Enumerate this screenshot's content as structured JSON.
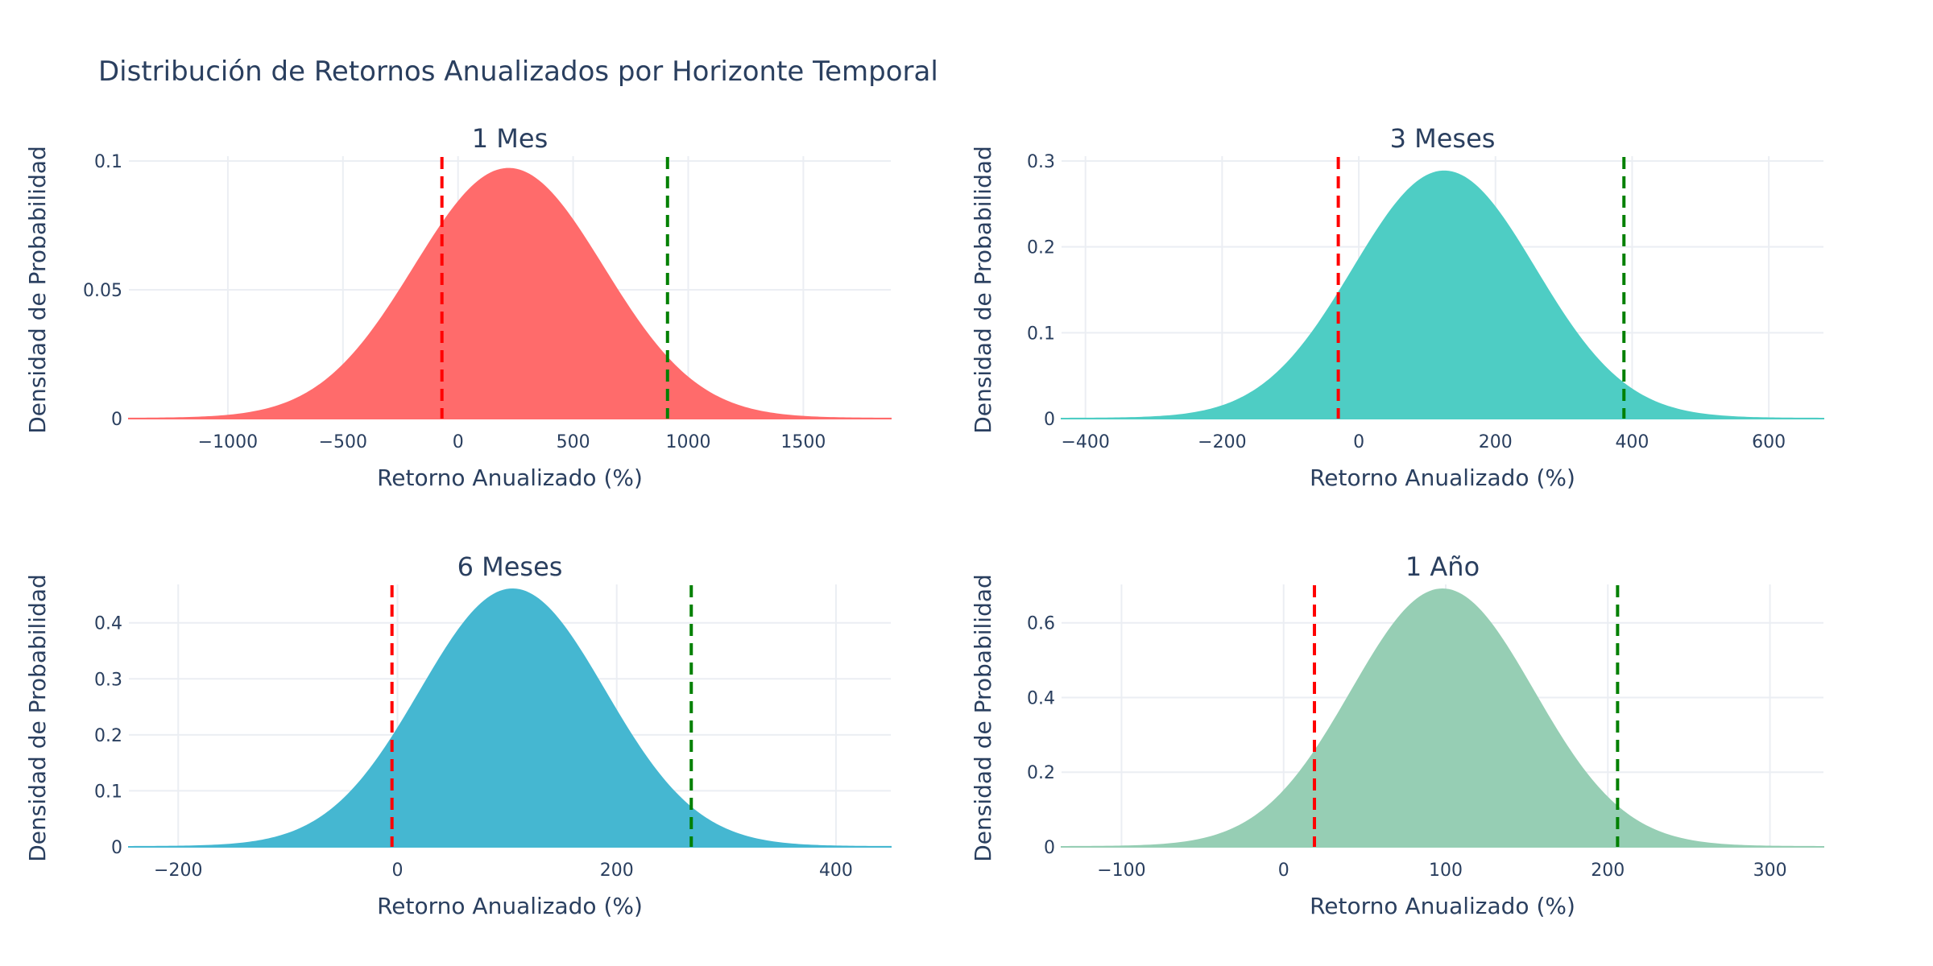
{
  "title": "Distribución de Retornos Anualizados por Horizonte Temporal",
  "colors": {
    "text": "#2a3f5f",
    "grid": "#ebeef3",
    "var_line": "#ff0000",
    "upper_line": "#008000"
  },
  "chart_data": [
    {
      "type": "area",
      "title": "1 Mes",
      "xlabel": "Retorno Anualizado (%)",
      "ylabel": "Densidad de Probabilidad",
      "color": "#ff6b6b",
      "mean": 220,
      "std": 410,
      "peak": 0.097,
      "xlim": [
        -1430,
        1880
      ],
      "ylim": [
        0,
        0.1
      ],
      "xticks": [
        -1000,
        -500,
        0,
        500,
        1000,
        1500
      ],
      "xtick_labels": [
        "−1000",
        "−500",
        "0",
        "500",
        "1000",
        "1500"
      ],
      "yticks": [
        0,
        0.05,
        0.1
      ],
      "ytick_labels": [
        "0",
        "0.05",
        "0.1"
      ],
      "lower_line": -70,
      "upper_line": 910
    },
    {
      "type": "area",
      "title": "3 Meses",
      "xlabel": "Retorno Anualizado (%)",
      "ylabel": "Densidad de Probabilidad",
      "color": "#4ecdc4",
      "mean": 125,
      "std": 133,
      "peak": 0.288,
      "xlim": [
        -435,
        680
      ],
      "ylim": [
        0,
        0.3
      ],
      "xticks": [
        -400,
        -200,
        0,
        200,
        400,
        600
      ],
      "xtick_labels": [
        "−400",
        "−200",
        "0",
        "200",
        "400",
        "600"
      ],
      "yticks": [
        0,
        0.1,
        0.2,
        0.3
      ],
      "ytick_labels": [
        "0",
        "0.1",
        "0.2",
        "0.3"
      ],
      "lower_line": -30,
      "upper_line": 388
    },
    {
      "type": "area",
      "title": "6 Meses",
      "xlabel": "Retorno Anualizado (%)",
      "ylabel": "Densidad de Probabilidad",
      "color": "#45b7d1",
      "mean": 105,
      "std": 84,
      "peak": 0.46,
      "xlim": [
        -245,
        450
      ],
      "ylim": [
        0,
        0.46
      ],
      "xticks": [
        -200,
        0,
        200,
        400
      ],
      "xtick_labels": [
        "−200",
        "0",
        "200",
        "400"
      ],
      "yticks": [
        0,
        0.1,
        0.2,
        0.3,
        0.4
      ],
      "ytick_labels": [
        "0",
        "0.1",
        "0.2",
        "0.3",
        "0.4"
      ],
      "lower_line": -5,
      "upper_line": 268
    },
    {
      "type": "area",
      "title": "1 Año",
      "xlabel": "Retorno Anualizado (%)",
      "ylabel": "Densidad de Probabilidad",
      "color": "#96ceb4",
      "mean": 98,
      "std": 56,
      "peak": 0.69,
      "xlim": [
        -137,
        333
      ],
      "ylim": [
        0,
        0.69
      ],
      "xticks": [
        -100,
        0,
        100,
        200,
        300
      ],
      "xtick_labels": [
        "−100",
        "0",
        "100",
        "200",
        "300"
      ],
      "yticks": [
        0,
        0.2,
        0.4,
        0.6
      ],
      "ytick_labels": [
        "0",
        "0.2",
        "0.4",
        "0.6"
      ],
      "lower_line": 19,
      "upper_line": 206
    }
  ]
}
